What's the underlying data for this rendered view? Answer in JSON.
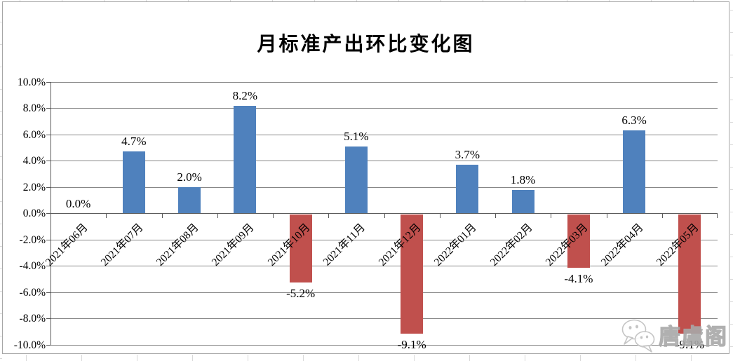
{
  "chart_data": {
    "type": "bar",
    "title": "月标准产出环比变化图",
    "categories": [
      "2021年06月",
      "2021年07月",
      "2021年08月",
      "2021年09月",
      "2021年10月",
      "2021年11月",
      "2021年12月",
      "2022年01月",
      "2022年02月",
      "2022年03月",
      "2022年04月",
      "2022年05月"
    ],
    "values": [
      0.0,
      4.7,
      2.0,
      8.2,
      -5.2,
      5.1,
      -9.1,
      3.7,
      1.8,
      -4.1,
      6.3,
      -9.1
    ],
    "value_labels": [
      "0.0%",
      "4.7%",
      "2.0%",
      "8.2%",
      "-5.2%",
      "5.1%",
      "-9.1%",
      "3.7%",
      "1.8%",
      "-4.1%",
      "6.3%",
      "-9.1%"
    ],
    "y_ticks": [
      "10.0%",
      "8.0%",
      "6.0%",
      "4.0%",
      "2.0%",
      "0.0%",
      "-2.0%",
      "-4.0%",
      "-6.0%",
      "-8.0%",
      "-10.0%"
    ],
    "ylim": [
      -10,
      10
    ],
    "xlabel": "",
    "ylabel": "",
    "grid": true,
    "legend": "none",
    "colors": {
      "positive": "#4F81BD",
      "negative": "#C0504D"
    }
  },
  "watermark": {
    "text": "唐虞阁",
    "icon": "wechat-bubbles-icon"
  }
}
